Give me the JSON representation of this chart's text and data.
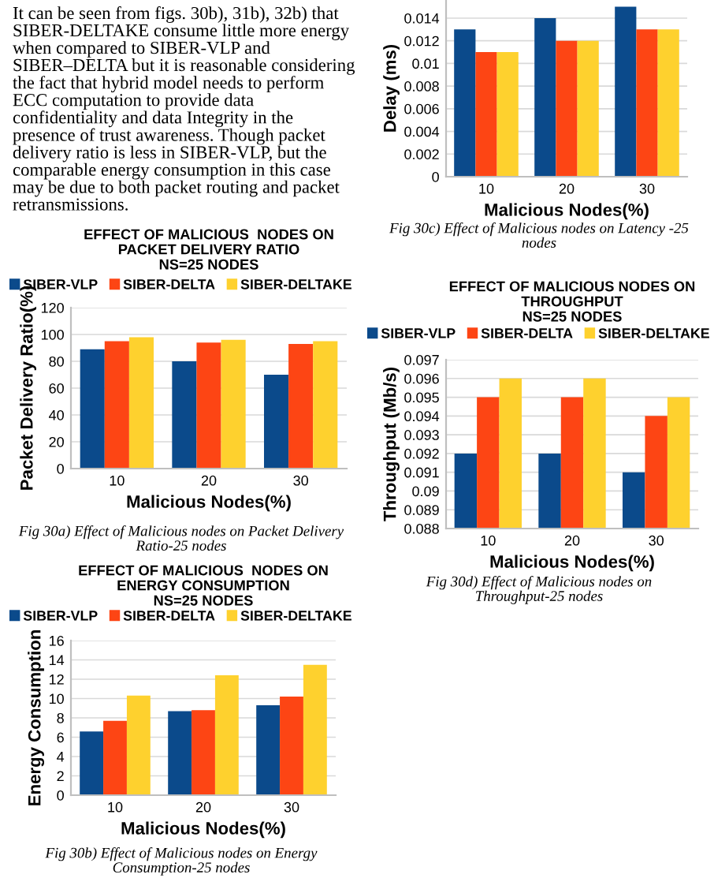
{
  "chart_data": [
    {
      "type": "other",
      "annotations": [
        "It can be seen from figs. 30b), 31b), 32b) that SIBER-DELTAKE consume little more energy when compared to SIBER-VLP and SIBER–DELTA but it is reasonable considering the fact that hybrid model needs to perform ECC computation to provide data confidentiality and data Integrity in the presence of trust awareness. Though packet delivery ratio is less in SIBER-VLP, but the comparable energy consumption in this case may be due to both packet routing and packet retransmissions."
      ]
    },
    {
      "type": "bar",
      "title": "EFFECT OF MALICIOUS  NODES ON\nPACKET DELIVERY RATIO\nNS=25 NODES",
      "xlabel": "Malicious Nodes(%)",
      "ylabel": "Packet Delivery Ratio(%)",
      "categories": [
        "10",
        "20",
        "30"
      ],
      "series": [
        {
          "name": "SIBER-VLP",
          "color": "#0b4a8b",
          "values": [
            89,
            80,
            70
          ]
        },
        {
          "name": "SIBER-DELTA",
          "color": "#fd4514",
          "values": [
            95,
            94,
            93
          ]
        },
        {
          "name": "SIBER-DELTAKE",
          "color": "#fed12e",
          "values": [
            98,
            96,
            95
          ]
        }
      ],
      "ylim": [
        0,
        120
      ],
      "yticks": [
        0,
        20,
        40,
        60,
        80,
        100,
        120
      ],
      "grid": "y",
      "legend": "top",
      "annotations": [
        "Fig 30a) Effect of Malicious nodes on Packet Delivery Ratio-25 nodes"
      ]
    },
    {
      "type": "bar",
      "title": "EFFECT OF MALICIOUS  NODES ON\nENERGY CONSUMPTION\nNS=25 NODES",
      "xlabel": "Malicious Nodes(%)",
      "ylabel": "Energy Consumption",
      "categories": [
        "10",
        "20",
        "30"
      ],
      "series": [
        {
          "name": "SIBER-VLP",
          "color": "#0b4a8b",
          "values": [
            6.6,
            8.7,
            9.3
          ]
        },
        {
          "name": "SIBER-DELTA",
          "color": "#fd4514",
          "values": [
            7.7,
            8.8,
            10.2
          ]
        },
        {
          "name": "SIBER-DELTAKE",
          "color": "#fed12e",
          "values": [
            10.3,
            12.4,
            13.5
          ]
        }
      ],
      "ylim": [
        0,
        16
      ],
      "yticks": [
        0,
        2,
        4,
        6,
        8,
        10,
        12,
        14,
        16
      ],
      "grid": "y",
      "legend": "top",
      "annotations": [
        "Fig 30b) Effect of Malicious nodes on Energy Consumption-25 nodes"
      ]
    },
    {
      "type": "bar",
      "xlabel": "Malicious Nodes(%)",
      "ylabel": "Delay (ms)",
      "categories": [
        "10",
        "20",
        "30"
      ],
      "series": [
        {
          "color": "#0b4a8b",
          "values": [
            0.013,
            0.014,
            0.015
          ]
        },
        {
          "color": "#fd4514",
          "values": [
            0.011,
            0.012,
            0.013
          ]
        },
        {
          "color": "#fed12e",
          "values": [
            0.011,
            0.012,
            0.013
          ]
        }
      ],
      "ylim": [
        0,
        0.0156
      ],
      "yticks": [
        0,
        0.002,
        0.004,
        0.006,
        0.008,
        0.01,
        0.012,
        0.014
      ],
      "grid": "y",
      "annotations": [
        "Fig 30c) Effect of Malicious nodes on Latency -25 nodes"
      ]
    },
    {
      "type": "bar",
      "title": "EFFECT OF MALICIOUS NODES ON\nTHROUGHPUT\nNS=25 NODES",
      "xlabel": "Malicious Nodes(%)",
      "ylabel": "Throughput (Mb/s)",
      "categories": [
        "10",
        "20",
        "30"
      ],
      "series": [
        {
          "name": "SIBER-VLP",
          "color": "#0b4a8b",
          "values": [
            0.092,
            0.092,
            0.091
          ]
        },
        {
          "name": "SIBER-DELTA",
          "color": "#fd4514",
          "values": [
            0.095,
            0.095,
            0.094
          ]
        },
        {
          "name": "SIBER-DELTAKE",
          "color": "#fed12e",
          "values": [
            0.096,
            0.096,
            0.095
          ]
        }
      ],
      "ylim": [
        0.088,
        0.097
      ],
      "yticks": [
        0.088,
        0.089,
        0.09,
        0.091,
        0.092,
        0.093,
        0.094,
        0.095,
        0.096,
        0.097
      ],
      "grid": "y",
      "legend": "top",
      "annotations": [
        "Fig 30d) Effect of Malicious nodes on Throughput-25 nodes"
      ]
    }
  ]
}
